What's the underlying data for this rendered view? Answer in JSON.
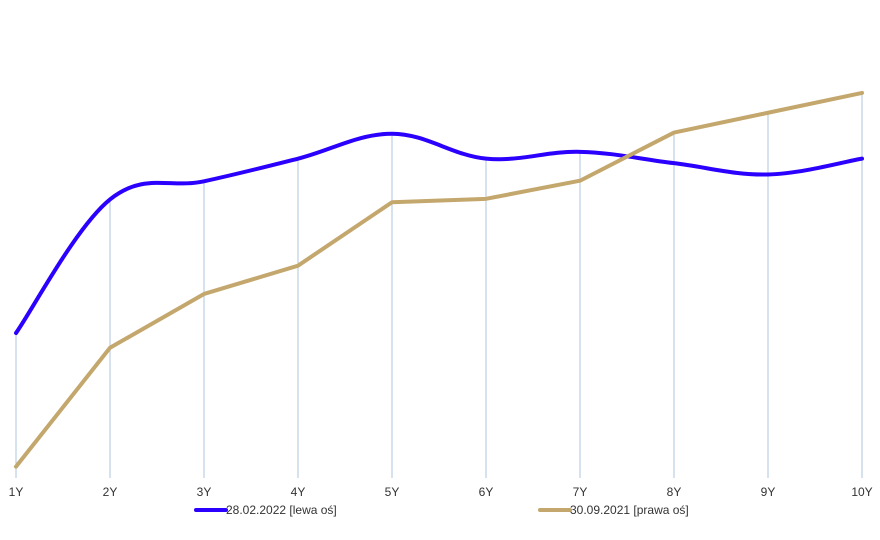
{
  "chart_data": {
    "type": "line",
    "categories": [
      "1Y",
      "2Y",
      "3Y",
      "4Y",
      "5Y",
      "6Y",
      "7Y",
      "8Y",
      "9Y",
      "10Y"
    ],
    "grid": {
      "vertical": true,
      "horizontal": false,
      "color": "#aec4de"
    },
    "legend": {
      "placement": "bottom"
    },
    "series": [
      {
        "name": "28.02.2022 [lewa oś]",
        "axis": "left",
        "color": "#2c00ff",
        "smooth": true,
        "values": [
          3.2,
          6.15,
          6.55,
          7.05,
          7.6,
          7.05,
          7.2,
          6.95,
          6.7,
          7.05
        ]
      },
      {
        "name": "30.09.2021 [prawa oś]",
        "axis": "right",
        "color": "#c4a76d",
        "smooth": false,
        "values": [
          0.2,
          2.3,
          3.25,
          3.75,
          4.87,
          4.93,
          5.25,
          6.1,
          6.45,
          6.8
        ]
      }
    ],
    "ylim_left": [
      0,
      10
    ],
    "ylim_right": [
      0,
      8
    ]
  }
}
